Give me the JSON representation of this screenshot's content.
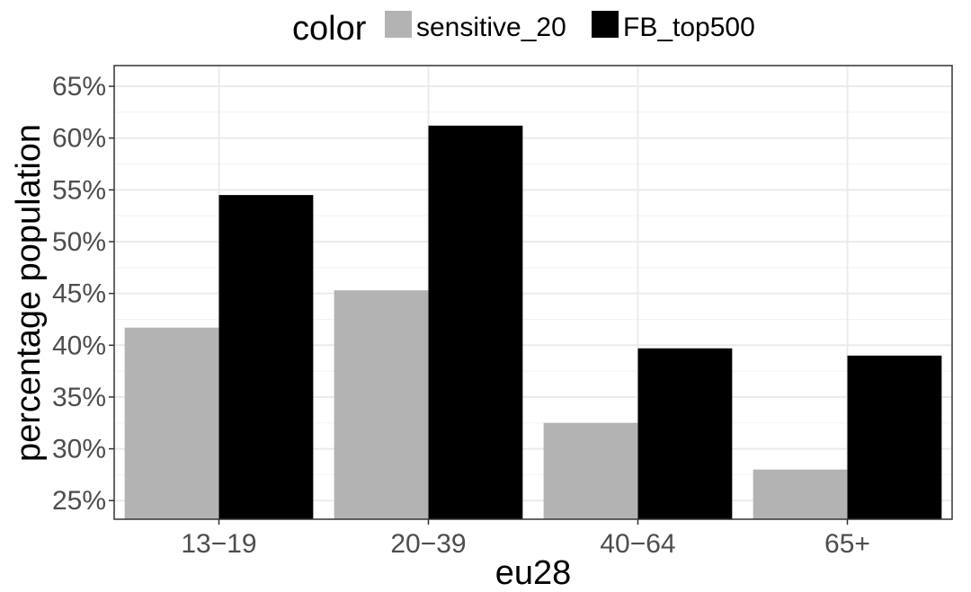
{
  "chart_data": {
    "type": "bar",
    "categories": [
      "13−19",
      "20−39",
      "40−64",
      "65+"
    ],
    "series": [
      {
        "name": "sensitive_20",
        "color": "#b3b3b3",
        "values": [
          41.7,
          45.3,
          32.5,
          28.0
        ]
      },
      {
        "name": "FB_top500",
        "color": "#000000",
        "values": [
          54.5,
          61.2,
          39.7,
          39.0
        ]
      }
    ],
    "xlabel": "eu28",
    "ylabel": "percentage population",
    "ylim": [
      23.2,
      67.0
    ],
    "yticks": [
      25,
      30,
      35,
      40,
      45,
      50,
      55,
      60,
      65
    ],
    "ytick_labels": [
      "25%",
      "30%",
      "35%",
      "40%",
      "45%",
      "50%",
      "55%",
      "60%",
      "65%"
    ],
    "legend_title": "color",
    "legend_position": "top",
    "grid": true
  }
}
